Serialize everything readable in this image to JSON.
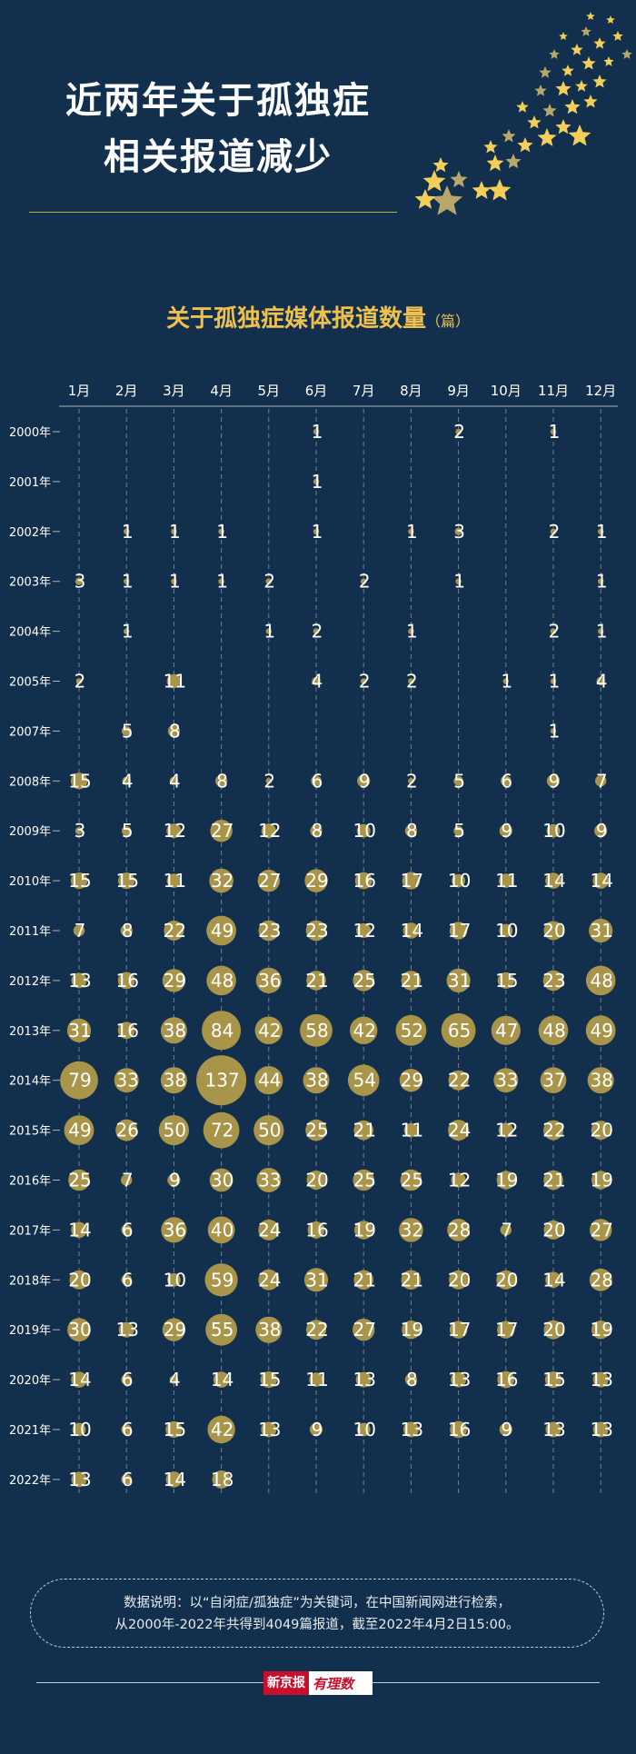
{
  "header": {
    "title_line1": "近两年关于孤独症",
    "title_line2": "相关报道减少"
  },
  "chart_data": {
    "type": "bubble",
    "title": "关于孤独症媒体报道数量",
    "unit": "（篇）",
    "x": [
      "1月",
      "2月",
      "3月",
      "4月",
      "5月",
      "6月",
      "7月",
      "8月",
      "9月",
      "10月",
      "11月",
      "12月"
    ],
    "y": [
      "2000年",
      "2001年",
      "2002年",
      "2003年",
      "2004年",
      "2005年",
      "2007年",
      "2008年",
      "2009年",
      "2010年",
      "2011年",
      "2012年",
      "2013年",
      "2014年",
      "2015年",
      "2016年",
      "2017年",
      "2018年",
      "2019年",
      "2020年",
      "2021年",
      "2022年"
    ],
    "values": [
      [
        null,
        null,
        null,
        null,
        null,
        1,
        null,
        null,
        2,
        null,
        1,
        null
      ],
      [
        null,
        null,
        null,
        null,
        null,
        1,
        null,
        null,
        null,
        null,
        null,
        null
      ],
      [
        null,
        1,
        1,
        1,
        null,
        1,
        null,
        1,
        3,
        null,
        2,
        1
      ],
      [
        3,
        1,
        1,
        1,
        2,
        null,
        2,
        null,
        1,
        null,
        null,
        1
      ],
      [
        null,
        1,
        null,
        null,
        1,
        2,
        null,
        1,
        null,
        null,
        2,
        1
      ],
      [
        2,
        null,
        11,
        null,
        null,
        4,
        2,
        2,
        null,
        1,
        1,
        4
      ],
      [
        null,
        5,
        8,
        null,
        null,
        null,
        null,
        null,
        null,
        null,
        1,
        null
      ],
      [
        15,
        4,
        4,
        8,
        2,
        6,
        9,
        2,
        5,
        6,
        9,
        7
      ],
      [
        3,
        5,
        12,
        27,
        12,
        8,
        10,
        8,
        5,
        9,
        10,
        9
      ],
      [
        15,
        15,
        11,
        32,
        27,
        29,
        16,
        17,
        10,
        11,
        14,
        14
      ],
      [
        7,
        8,
        22,
        49,
        23,
        23,
        12,
        14,
        17,
        10,
        20,
        31
      ],
      [
        13,
        16,
        29,
        48,
        36,
        21,
        25,
        21,
        31,
        15,
        23,
        48
      ],
      [
        31,
        16,
        38,
        84,
        42,
        58,
        42,
        52,
        65,
        47,
        48,
        49
      ],
      [
        79,
        33,
        38,
        137,
        44,
        38,
        54,
        29,
        22,
        33,
        37,
        38
      ],
      [
        49,
        26,
        50,
        72,
        50,
        25,
        21,
        11,
        24,
        12,
        22,
        20
      ],
      [
        25,
        7,
        9,
        30,
        33,
        20,
        25,
        25,
        12,
        19,
        21,
        19
      ],
      [
        14,
        6,
        36,
        40,
        24,
        16,
        19,
        32,
        28,
        7,
        20,
        27
      ],
      [
        20,
        6,
        10,
        59,
        24,
        31,
        21,
        21,
        20,
        20,
        14,
        28
      ],
      [
        30,
        13,
        29,
        55,
        38,
        22,
        27,
        19,
        17,
        17,
        20,
        19
      ],
      [
        14,
        6,
        4,
        14,
        15,
        11,
        13,
        8,
        13,
        16,
        15,
        13
      ],
      [
        10,
        6,
        15,
        42,
        13,
        9,
        10,
        13,
        16,
        9,
        13,
        13
      ],
      [
        13,
        6,
        14,
        18,
        null,
        null,
        null,
        null,
        null,
        null,
        null,
        null
      ]
    ],
    "colors": {
      "bubble": "#a8954a",
      "text": "#ffffff",
      "axis": "#aab4c0",
      "gridline": "#6d8094"
    }
  },
  "note": {
    "line1": "数据说明：以“自闭症/孤独症”为关键词，在中国新闻网进行检索，",
    "line2": "从2000年-2022年共得到4049篇报道，截至2022年4月2日15:00。"
  },
  "footer": {
    "logo_text1": "新京报",
    "logo_text2": "有理数"
  }
}
